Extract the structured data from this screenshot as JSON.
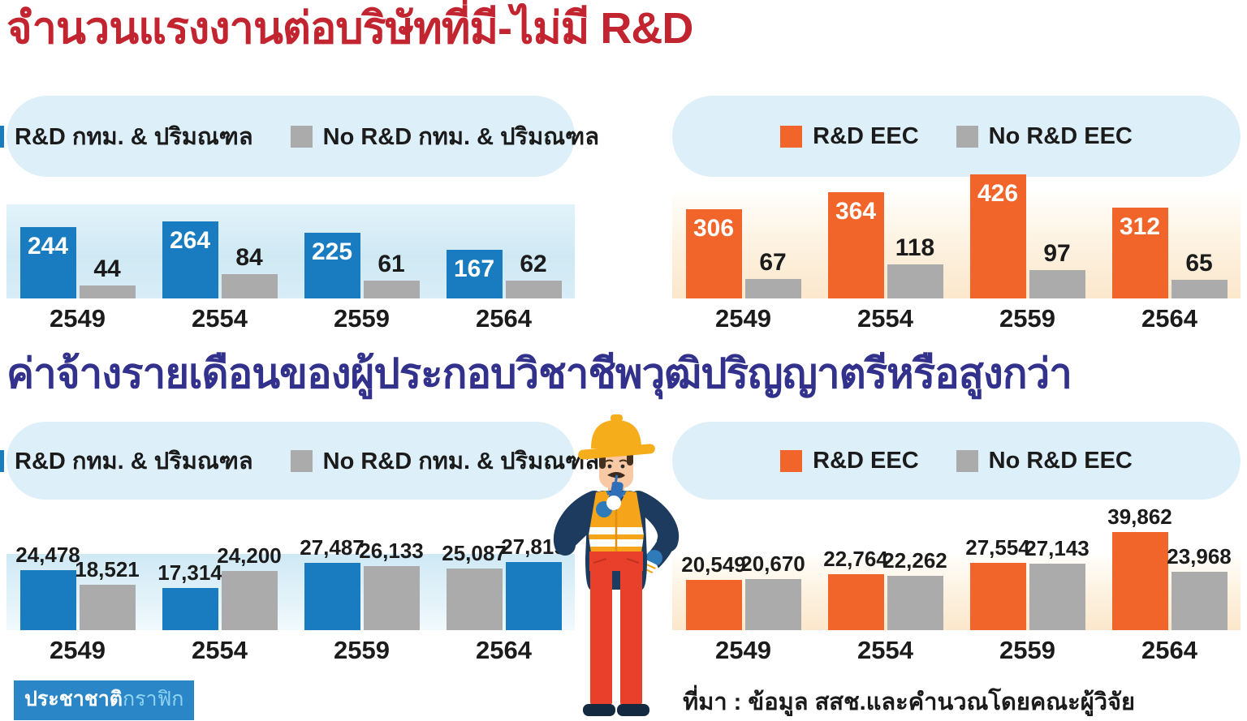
{
  "sections": [
    {
      "title": "จำนวนแรงงานต่อบริษัทที่มี-ไม่มี R&D"
    },
    {
      "title": "ค่าจ้างรายเดือนของผู้ประกอบวิชาชีพวุฒิปริญญาตรีหรือสูงกว่า"
    }
  ],
  "source": "ที่มา : ข้อมูล สสช.และคำนวณโดยคณะผู้วิจัย",
  "badge": {
    "part1": "ประชาชาติ",
    "part2": "กราฟิก"
  },
  "colors": {
    "rnd_blue": "#1a7cc0",
    "rnd_orange": "#f2652a",
    "no_rnd_gray": "#ababab",
    "title_red": "#c22430",
    "title_navy": "#32318c",
    "pill_bg": "#ddf0f9",
    "badge_bg": "#2a86c6",
    "badge_light_text": "#8fd4f4",
    "label_dark": "#1b1b1b"
  },
  "chart_data": [
    {
      "id": "workers_rnd_bkk",
      "type": "bar",
      "section_title": "จำนวนแรงงานต่อบริษัทที่มี-ไม่มี R&D",
      "legend": [
        "R&D กทม. & ปริมณฑล",
        "No R&D กทม. & ปริมณฑล"
      ],
      "legend_position": "top",
      "grid": false,
      "series_colors": [
        "rnd_blue",
        "no_rnd_gray"
      ],
      "categories": [
        "2549",
        "2554",
        "2559",
        "2564"
      ],
      "series": [
        {
          "name": "R&D กทม. & ปริมณฑล",
          "values": [
            244,
            264,
            225,
            167
          ]
        },
        {
          "name": "No R&D กทม. & ปริมณฑล",
          "values": [
            44,
            84,
            61,
            62
          ]
        }
      ],
      "bar_order": [
        [
          0,
          1
        ],
        [
          0,
          1
        ],
        [
          0,
          1
        ],
        [
          0,
          1
        ]
      ],
      "label_positions": [
        "inside",
        "above"
      ],
      "ylim": [
        0,
        450
      ]
    },
    {
      "id": "workers_rnd_eec",
      "type": "bar",
      "section_title": "จำนวนแรงงานต่อบริษัทที่มี-ไม่มี R&D",
      "legend": [
        "R&D EEC",
        "No R&D EEC"
      ],
      "legend_position": "top",
      "grid": false,
      "series_colors": [
        "rnd_orange",
        "no_rnd_gray"
      ],
      "categories": [
        "2549",
        "2554",
        "2559",
        "2564"
      ],
      "series": [
        {
          "name": "R&D EEC",
          "values": [
            306,
            364,
            426,
            312
          ]
        },
        {
          "name": "No R&D EEC",
          "values": [
            67,
            118,
            97,
            65
          ]
        }
      ],
      "bar_order": [
        [
          0,
          1
        ],
        [
          0,
          1
        ],
        [
          0,
          1
        ],
        [
          0,
          1
        ]
      ],
      "label_positions": [
        "inside",
        "above"
      ],
      "ylim": [
        0,
        450
      ]
    },
    {
      "id": "wage_rnd_bkk",
      "type": "bar",
      "section_title": "ค่าจ้างรายเดือนของผู้ประกอบวิชาชีพวุฒิปริญญาตรีหรือสูงกว่า",
      "legend": [
        "R&D กทม. & ปริมณฑล",
        "No R&D กทม. & ปริมณฑล"
      ],
      "legend_position": "top",
      "grid": false,
      "series_colors": [
        "rnd_blue",
        "no_rnd_gray"
      ],
      "categories": [
        "2549",
        "2554",
        "2559",
        "2564"
      ],
      "series": [
        {
          "name": "R&D กทม. & ปริมณฑล",
          "values": [
            24478,
            17314,
            27487,
            27819
          ]
        },
        {
          "name": "No R&D กทม. & ปริมณฑล",
          "values": [
            18521,
            24200,
            26133,
            25087
          ]
        }
      ],
      "bar_order": [
        [
          0,
          1
        ],
        [
          0,
          1
        ],
        [
          0,
          1
        ],
        [
          1,
          0
        ]
      ],
      "label_positions": [
        "above",
        "above"
      ],
      "ylim": [
        0,
        41000
      ]
    },
    {
      "id": "wage_rnd_eec",
      "type": "bar",
      "section_title": "ค่าจ้างรายเดือนของผู้ประกอบวิชาชีพวุฒิปริญญาตรีหรือสูงกว่า",
      "legend": [
        "R&D EEC",
        "No R&D EEC"
      ],
      "legend_position": "top",
      "grid": false,
      "series_colors": [
        "rnd_orange",
        "no_rnd_gray"
      ],
      "categories": [
        "2549",
        "2554",
        "2559",
        "2564"
      ],
      "series": [
        {
          "name": "R&D EEC",
          "values": [
            20549,
            22764,
            27554,
            39862
          ]
        },
        {
          "name": "No R&D EEC",
          "values": [
            20670,
            22262,
            27143,
            23968
          ]
        }
      ],
      "bar_order": [
        [
          0,
          1
        ],
        [
          0,
          1
        ],
        [
          0,
          1
        ],
        [
          0,
          1
        ]
      ],
      "label_positions": [
        "above",
        "above"
      ],
      "ylim": [
        0,
        41000
      ]
    }
  ]
}
